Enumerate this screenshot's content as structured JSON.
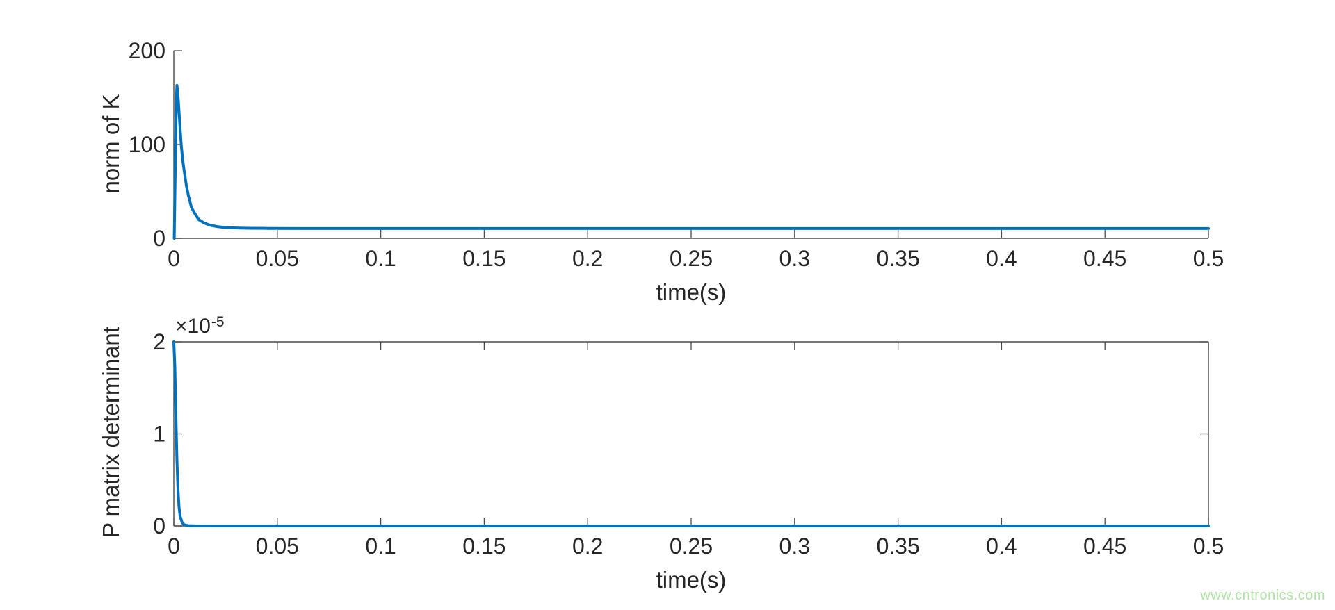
{
  "figure": {
    "background": "#ffffff",
    "axis_color": "#4a4a4a",
    "text_color": "#262626",
    "watermark": "www.cntronics.com",
    "watermark_color": "#aee4a4"
  },
  "chart_data": [
    {
      "type": "line",
      "title": "",
      "xlabel": "time(s)",
      "ylabel": "norm of K",
      "xlim": [
        0,
        0.5
      ],
      "ylim": [
        0,
        200
      ],
      "xticks": [
        0,
        0.05,
        0.1,
        0.15,
        0.2,
        0.25,
        0.3,
        0.35,
        0.4,
        0.45,
        0.5
      ],
      "xtick_labels": [
        "0",
        "0.05",
        "0.1",
        "0.15",
        "0.2",
        "0.25",
        "0.3",
        "0.35",
        "0.4",
        "0.45",
        "0.5"
      ],
      "yticks": [
        0,
        100,
        200
      ],
      "ytick_labels": [
        "0",
        "100",
        "200"
      ],
      "box": false,
      "grid": false,
      "legend": null,
      "line_color": "#0072bd",
      "peak_value": 163,
      "steady_value": 10.5,
      "series": [
        {
          "name": "norm of K",
          "points": [
            [
              0.0002,
              0
            ],
            [
              0.0006,
              60
            ],
            [
              0.001,
              120
            ],
            [
              0.0013,
              152
            ],
            [
              0.0015,
              163
            ],
            [
              0.0018,
              158
            ],
            [
              0.0022,
              146
            ],
            [
              0.0026,
              132
            ],
            [
              0.003,
              118
            ],
            [
              0.0036,
              99
            ],
            [
              0.0043,
              83
            ],
            [
              0.005,
              72
            ],
            [
              0.006,
              57
            ],
            [
              0.007,
              46
            ],
            [
              0.0085,
              33
            ],
            [
              0.01,
              27
            ],
            [
              0.012,
              20
            ],
            [
              0.0145,
              16.5
            ],
            [
              0.0175,
              14
            ],
            [
              0.021,
              12.5
            ],
            [
              0.025,
              11.5
            ],
            [
              0.03,
              11
            ],
            [
              0.036,
              10.7
            ],
            [
              0.045,
              10.6
            ],
            [
              0.06,
              10.5
            ],
            [
              0.1,
              10.5
            ],
            [
              0.15,
              10.5
            ],
            [
              0.2,
              10.5
            ],
            [
              0.25,
              10.5
            ],
            [
              0.3,
              10.5
            ],
            [
              0.35,
              10.5
            ],
            [
              0.4,
              10.5
            ],
            [
              0.45,
              10.5
            ],
            [
              0.5,
              10.5
            ]
          ]
        }
      ]
    },
    {
      "type": "line",
      "title": "",
      "xlabel": "time(s)",
      "ylabel": "P matrix determinant",
      "y_scale": {
        "mantissa": "×10",
        "exponent": "-5"
      },
      "y_unit": "1e-5",
      "xlim": [
        0,
        0.5
      ],
      "ylim": [
        0,
        2
      ],
      "xticks": [
        0,
        0.05,
        0.1,
        0.15,
        0.2,
        0.25,
        0.3,
        0.35,
        0.4,
        0.45,
        0.5
      ],
      "xtick_labels": [
        "0",
        "0.05",
        "0.1",
        "0.15",
        "0.2",
        "0.25",
        "0.3",
        "0.35",
        "0.4",
        "0.45",
        "0.5"
      ],
      "yticks": [
        0,
        1,
        2
      ],
      "ytick_labels": [
        "0",
        "1",
        "2"
      ],
      "box": true,
      "grid": false,
      "legend": null,
      "line_color": "#0072bd",
      "peak_value": 2,
      "steady_value": 0,
      "series": [
        {
          "name": "P matrix determinant",
          "points": [
            [
              0,
              2
            ],
            [
              0.0005,
              1.72
            ],
            [
              0.001,
              1.2
            ],
            [
              0.0015,
              0.72
            ],
            [
              0.002,
              0.4
            ],
            [
              0.0025,
              0.21
            ],
            [
              0.003,
              0.11
            ],
            [
              0.004,
              0.035
            ],
            [
              0.005,
              0.013
            ],
            [
              0.007,
              0.003
            ],
            [
              0.01,
              0.0006
            ],
            [
              0.02,
              0.0001
            ],
            [
              0.05,
              0
            ],
            [
              0.1,
              0
            ],
            [
              0.15,
              0
            ],
            [
              0.2,
              0
            ],
            [
              0.25,
              0
            ],
            [
              0.3,
              0
            ],
            [
              0.35,
              0
            ],
            [
              0.4,
              0
            ],
            [
              0.45,
              0
            ],
            [
              0.5,
              0
            ]
          ]
        }
      ]
    }
  ]
}
